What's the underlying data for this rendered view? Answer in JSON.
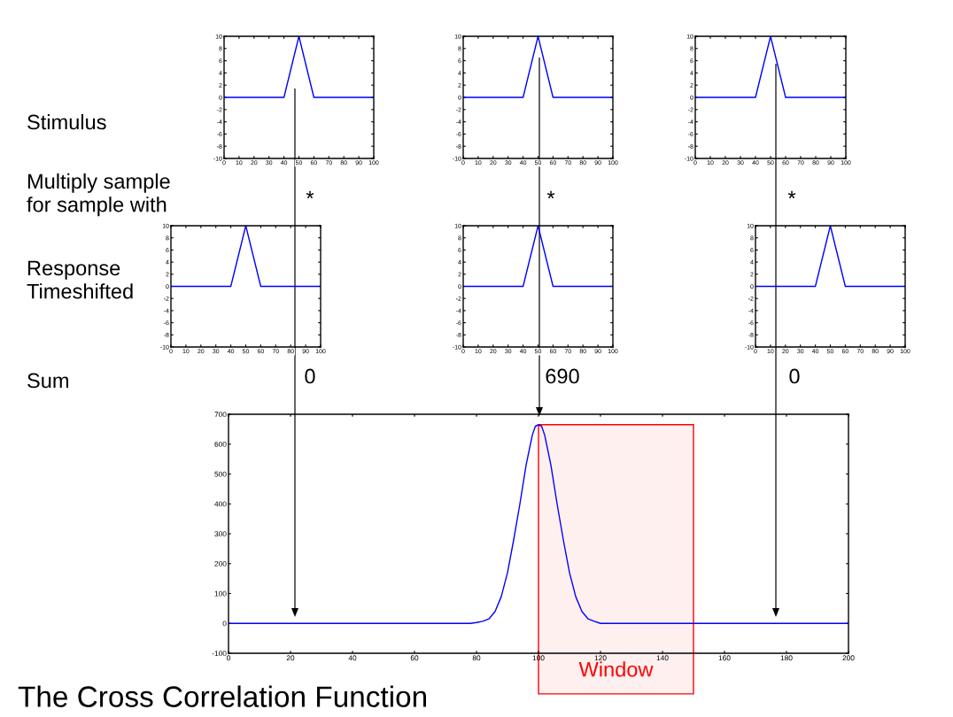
{
  "chart_data": [
    {
      "type": "line",
      "x": [
        0,
        40,
        50,
        60,
        100
      ],
      "series": [
        {
          "color": "#0000ff",
          "values": [
            0,
            0,
            10,
            0,
            0
          ]
        }
      ],
      "xlim": [
        0,
        100
      ],
      "ylim": [
        -10,
        10
      ],
      "xticks": [
        0,
        10,
        20,
        30,
        40,
        50,
        60,
        70,
        80,
        90,
        100
      ],
      "yticks": [
        -10,
        -8,
        -6,
        -4,
        -2,
        0,
        2,
        4,
        6,
        8,
        10
      ]
    },
    {
      "type": "line",
      "x": [
        0,
        40,
        50,
        60,
        100
      ],
      "series": [
        {
          "color": "#0000ff",
          "values": [
            0,
            0,
            10,
            0,
            0
          ]
        }
      ],
      "xlim": [
        0,
        100
      ],
      "ylim": [
        -10,
        10
      ],
      "xticks": [
        0,
        10,
        20,
        30,
        40,
        50,
        60,
        70,
        80,
        90,
        100
      ],
      "yticks": [
        -10,
        -8,
        -6,
        -4,
        -2,
        0,
        2,
        4,
        6,
        8,
        10
      ]
    },
    {
      "type": "line",
      "x": [
        0,
        40,
        50,
        60,
        100
      ],
      "series": [
        {
          "color": "#0000ff",
          "values": [
            0,
            0,
            10,
            0,
            0
          ]
        }
      ],
      "xlim": [
        0,
        100
      ],
      "ylim": [
        -10,
        10
      ],
      "xticks": [
        0,
        10,
        20,
        30,
        40,
        50,
        60,
        70,
        80,
        90,
        100
      ],
      "yticks": [
        -10,
        -8,
        -6,
        -4,
        -2,
        0,
        2,
        4,
        6,
        8,
        10
      ]
    },
    {
      "type": "line",
      "x": [
        0,
        40,
        50,
        60,
        100
      ],
      "series": [
        {
          "color": "#0000ff",
          "values": [
            0,
            0,
            10,
            0,
            0
          ]
        }
      ],
      "xlim": [
        0,
        100
      ],
      "ylim": [
        -10,
        10
      ],
      "xticks": [
        0,
        10,
        20,
        30,
        40,
        50,
        60,
        70,
        80,
        90,
        100
      ],
      "yticks": [
        -10,
        -8,
        -6,
        -4,
        -2,
        0,
        2,
        4,
        6,
        8,
        10
      ]
    },
    {
      "type": "line",
      "x": [
        0,
        40,
        50,
        60,
        100
      ],
      "series": [
        {
          "color": "#0000ff",
          "values": [
            0,
            0,
            10,
            0,
            0
          ]
        }
      ],
      "xlim": [
        0,
        100
      ],
      "ylim": [
        -10,
        10
      ],
      "xticks": [
        0,
        10,
        20,
        30,
        40,
        50,
        60,
        70,
        80,
        90,
        100
      ],
      "yticks": [
        -10,
        -8,
        -6,
        -4,
        -2,
        0,
        2,
        4,
        6,
        8,
        10
      ]
    },
    {
      "type": "line",
      "x": [
        0,
        40,
        50,
        60,
        100
      ],
      "series": [
        {
          "color": "#0000ff",
          "values": [
            0,
            0,
            10,
            0,
            0
          ]
        }
      ],
      "xlim": [
        0,
        100
      ],
      "ylim": [
        -10,
        10
      ],
      "xticks": [
        0,
        10,
        20,
        30,
        40,
        50,
        60,
        70,
        80,
        90,
        100
      ],
      "yticks": [
        -10,
        -8,
        -6,
        -4,
        -2,
        0,
        2,
        4,
        6,
        8,
        10
      ]
    },
    {
      "type": "line",
      "title": "The Cross Correlation Function",
      "x": [
        0,
        78,
        80,
        82,
        84,
        86,
        88,
        90,
        92,
        94,
        96,
        98,
        99,
        100,
        101,
        102,
        104,
        106,
        108,
        110,
        112,
        114,
        116,
        118,
        120,
        200
      ],
      "series": [
        {
          "color": "#0000ff",
          "values": [
            0,
            0,
            3,
            7,
            15,
            40,
            90,
            170,
            280,
            400,
            530,
            630,
            660,
            665,
            660,
            630,
            530,
            400,
            280,
            170,
            90,
            40,
            15,
            7,
            0,
            0
          ]
        }
      ],
      "xlim": [
        0,
        200
      ],
      "ylim": [
        -100,
        700
      ],
      "xticks": [
        0,
        20,
        40,
        60,
        80,
        100,
        120,
        140,
        160,
        180,
        200
      ],
      "yticks": [
        -100,
        0,
        100,
        200,
        300,
        400,
        500,
        600,
        700
      ],
      "bands": [
        {
          "axis": "x",
          "from": 100,
          "to": 150,
          "label": "Window",
          "color": "#ff0000"
        }
      ],
      "annotations": [
        "Stimulus",
        "Multiply sample\nfor sample with",
        "Response\nTimeshifted",
        "Sum",
        "*",
        "*",
        "*",
        "0",
        "690",
        "0"
      ]
    }
  ]
}
